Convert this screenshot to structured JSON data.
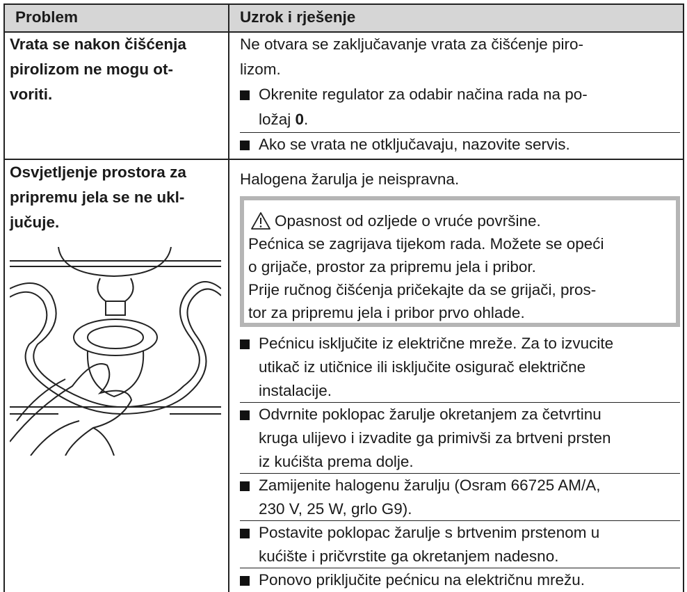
{
  "header": {
    "problem": "Problem",
    "cause": "Uzrok i rješenje"
  },
  "rows": [
    {
      "problem_lines": [
        "Vrata se nakon čišćenja",
        "pirolizom ne mogu ot-",
        "voriti."
      ],
      "cause_lines": [
        "Ne otvara se zaključavanje vrata za čišćenje piro-",
        "lizom."
      ],
      "bullets": [
        {
          "lines": [
            [
              {
                "text": "Okrenite regulator za odabir načina rada na po-"
              }
            ],
            [
              {
                "text": "ložaj "
              },
              {
                "text": "0",
                "bold": true
              },
              {
                "text": "."
              }
            ]
          ]
        },
        {
          "lines": [
            [
              {
                "text": "Ako se vrata ne otključavaju, nazovite servis."
              }
            ]
          ]
        }
      ]
    },
    {
      "problem_lines": [
        "Osvjetljenje prostora za",
        "pripremu jela se ne ukl-",
        "jučuje."
      ],
      "cause_lines": [
        "Halogena žarulja je neispravna."
      ],
      "warning": {
        "title": "Opasnost od ozljede o vruće površine.",
        "lines": [
          "Pećnica se zagrijava tijekom rada. Možete se opeći",
          "o grijače, prostor za pripremu jela i pribor.",
          "Prije ručnog čišćenja pričekajte da se grijači, pros-",
          "tor za pripremu jela i pribor prvo ohlade."
        ]
      },
      "bullets": [
        {
          "lines": [
            [
              {
                "text": "Pećnicu isključite iz električne mreže. Za to izvucite"
              }
            ],
            [
              {
                "text": "utikač iz utičnice ili isključite osigurač električne"
              }
            ],
            [
              {
                "text": "instalacije."
              }
            ]
          ]
        },
        {
          "lines": [
            [
              {
                "text": "Odvrnite poklopac žarulje okretanjem za četvrtinu"
              }
            ],
            [
              {
                "text": "kruga ulijevo i izvadite ga primivši za brtveni prsten"
              }
            ],
            [
              {
                "text": "iz kućišta prema dolje."
              }
            ]
          ]
        },
        {
          "lines": [
            [
              {
                "text": "Zamijenite halogenu žarulju (Osram 66725 AM/A,"
              }
            ],
            [
              {
                "text": "230 V, 25 W, grlo G9)."
              }
            ]
          ]
        },
        {
          "lines": [
            [
              {
                "text": "Postavite poklopac žarulje s brtvenim prstenom u"
              }
            ],
            [
              {
                "text": "kućište i pričvrstite ga okretanjem nadesno."
              }
            ]
          ]
        },
        {
          "lines": [
            [
              {
                "text": "Ponovo priključite pećnicu na električnu mrežu."
              }
            ]
          ]
        }
      ]
    }
  ]
}
